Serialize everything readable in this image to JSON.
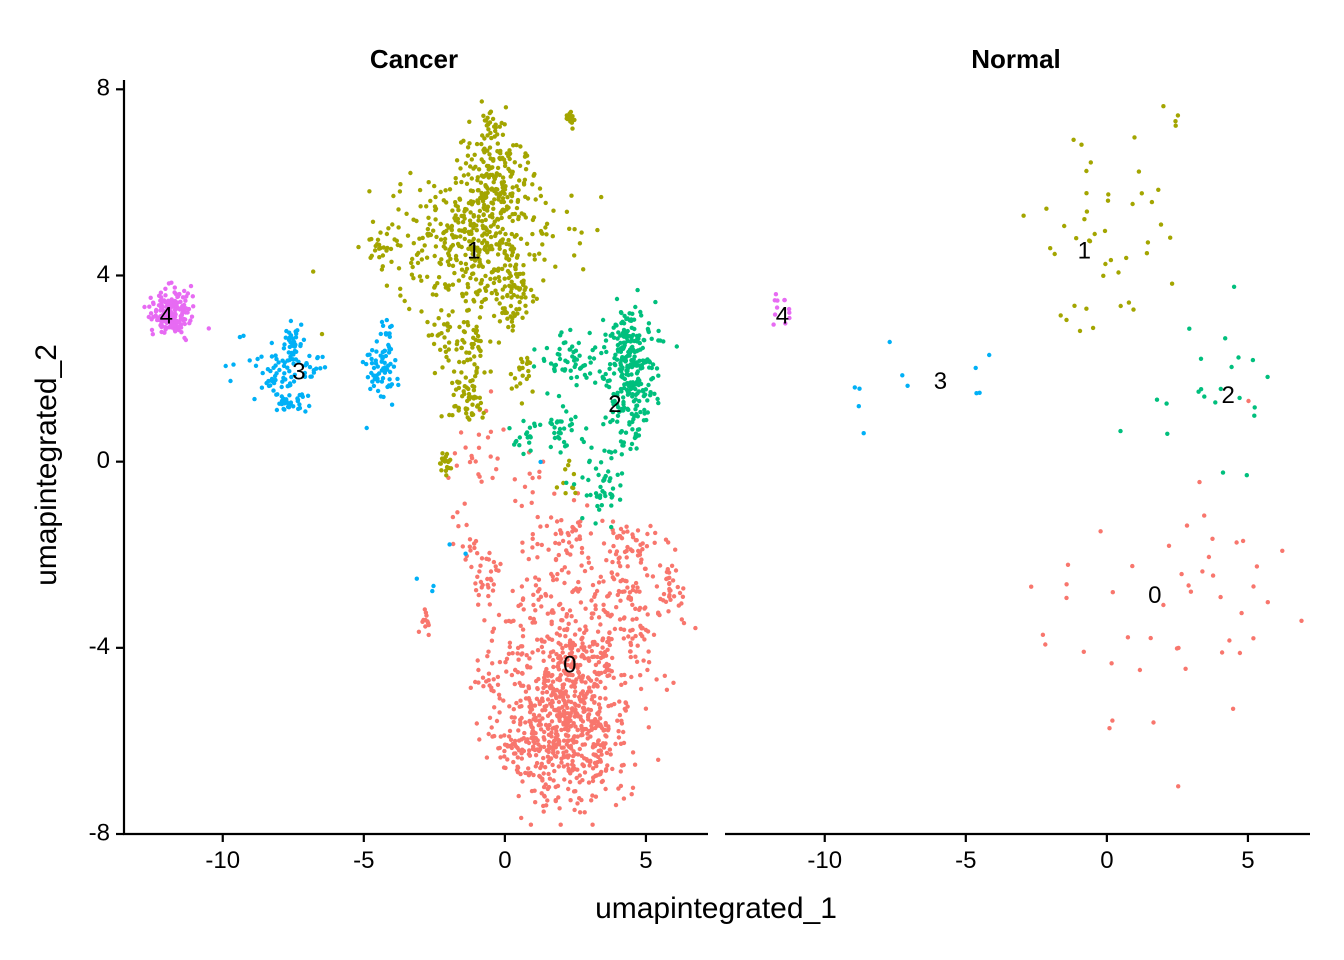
{
  "chart_data": {
    "type": "scatter",
    "xlabel": "umapintegrated_1",
    "ylabel": "umapintegrated_2",
    "xlim": [
      -13.5,
      7.2
    ],
    "ylim": [
      -8.0,
      8.2
    ],
    "xticks": [
      -10,
      -5,
      0,
      5
    ],
    "xtick_labels": [
      "-10",
      "-5",
      "0",
      "5"
    ],
    "yticks": [
      8,
      4,
      0,
      -4,
      -8
    ],
    "ytick_labels": [
      "8",
      "4",
      "0",
      "-4",
      "-8"
    ],
    "grid": false,
    "legend": "none",
    "clusters": [
      {
        "id": "0",
        "color": "#F8766D"
      },
      {
        "id": "1",
        "color": "#A3A500"
      },
      {
        "id": "2",
        "color": "#00BF7D"
      },
      {
        "id": "3",
        "color": "#00B0F6"
      },
      {
        "id": "4",
        "color": "#E76BF3"
      }
    ],
    "panels": [
      {
        "title": "Cancer",
        "blobs": [
          {
            "cluster": "0",
            "cx": 2.2,
            "cy": -5.6,
            "sx": 1.1,
            "sy": 0.9,
            "n": 650
          },
          {
            "cluster": "0",
            "cx": 2.5,
            "cy": -3.8,
            "sx": 1.5,
            "sy": 0.8,
            "n": 260
          },
          {
            "cluster": "0",
            "cx": 4.6,
            "cy": -3.0,
            "sx": 0.6,
            "sy": 0.7,
            "n": 80
          },
          {
            "cluster": "0",
            "cx": 5.9,
            "cy": -2.6,
            "sx": 0.2,
            "sy": 0.3,
            "n": 25
          },
          {
            "cluster": "0",
            "cx": 4.3,
            "cy": -1.8,
            "sx": 0.4,
            "sy": 0.3,
            "n": 30
          },
          {
            "cluster": "0",
            "cx": 2.4,
            "cy": -1.8,
            "sx": 0.8,
            "sy": 0.5,
            "n": 70
          },
          {
            "cluster": "0",
            "cx": -0.7,
            "cy": -2.5,
            "sx": 0.3,
            "sy": 0.4,
            "n": 30
          },
          {
            "cluster": "0",
            "cx": -1.4,
            "cy": -1.7,
            "sx": 0.2,
            "sy": 0.3,
            "n": 15
          },
          {
            "cluster": "0",
            "cx": -2.8,
            "cy": -3.4,
            "sx": 0.1,
            "sy": 0.15,
            "n": 12
          },
          {
            "cluster": "0",
            "cx": -1.0,
            "cy": 0.3,
            "sx": 0.5,
            "sy": 0.5,
            "n": 25
          },
          {
            "cluster": "0",
            "cx": -0.6,
            "cy": -4.7,
            "sx": 0.3,
            "sy": 0.1,
            "n": 12
          },
          {
            "cluster": "0",
            "cx": 0.4,
            "cy": -6.1,
            "sx": 0.4,
            "sy": 0.3,
            "n": 40
          },
          {
            "cluster": "0",
            "cx": 0.9,
            "cy": -0.5,
            "sx": 0.3,
            "sy": 0.3,
            "n": 12
          },
          {
            "cluster": "1",
            "cx": -1.0,
            "cy": 4.7,
            "sx": 1.4,
            "sy": 0.7,
            "n": 420
          },
          {
            "cluster": "1",
            "cx": -0.4,
            "cy": 6.2,
            "sx": 0.7,
            "sy": 0.6,
            "n": 150
          },
          {
            "cluster": "1",
            "cx": -0.4,
            "cy": 7.2,
            "sx": 0.15,
            "sy": 0.2,
            "n": 20
          },
          {
            "cluster": "1",
            "cx": 2.3,
            "cy": 7.3,
            "sx": 0.1,
            "sy": 0.1,
            "n": 15
          },
          {
            "cluster": "1",
            "cx": 0.3,
            "cy": 3.5,
            "sx": 0.4,
            "sy": 0.4,
            "n": 60
          },
          {
            "cluster": "1",
            "cx": -1.3,
            "cy": 2.4,
            "sx": 0.3,
            "sy": 0.4,
            "n": 50
          },
          {
            "cluster": "1",
            "cx": -2.2,
            "cy": 2.6,
            "sx": 0.2,
            "sy": 0.3,
            "n": 25
          },
          {
            "cluster": "1",
            "cx": -1.4,
            "cy": 1.3,
            "sx": 0.4,
            "sy": 0.25,
            "n": 50
          },
          {
            "cluster": "1",
            "cx": -2.1,
            "cy": 0.0,
            "sx": 0.15,
            "sy": 0.2,
            "n": 20
          },
          {
            "cluster": "1",
            "cx": 0.7,
            "cy": 1.9,
            "sx": 0.2,
            "sy": 0.2,
            "n": 20
          },
          {
            "cluster": "1",
            "cx": 2.3,
            "cy": -0.4,
            "sx": 0.15,
            "sy": 0.15,
            "n": 10
          },
          {
            "cluster": "1",
            "cx": -4.4,
            "cy": 4.6,
            "sx": 0.3,
            "sy": 0.2,
            "n": 25
          },
          {
            "cluster": "2",
            "cx": 4.5,
            "cy": 1.7,
            "sx": 0.4,
            "sy": 0.7,
            "n": 220
          },
          {
            "cluster": "2",
            "cx": 4.2,
            "cy": 2.6,
            "sx": 0.6,
            "sy": 0.3,
            "n": 70
          },
          {
            "cluster": "2",
            "cx": 2.3,
            "cy": 2.2,
            "sx": 0.6,
            "sy": 0.3,
            "n": 60
          },
          {
            "cluster": "2",
            "cx": 2.1,
            "cy": 0.8,
            "sx": 0.3,
            "sy": 0.25,
            "n": 30
          },
          {
            "cluster": "2",
            "cx": 3.5,
            "cy": -0.5,
            "sx": 0.4,
            "sy": 0.5,
            "n": 50
          },
          {
            "cluster": "2",
            "cx": 0.8,
            "cy": 0.6,
            "sx": 0.2,
            "sy": 0.2,
            "n": 20
          },
          {
            "cluster": "3",
            "cx": -8.0,
            "cy": 1.9,
            "sx": 0.4,
            "sy": 0.35,
            "n": 60
          },
          {
            "cluster": "3",
            "cx": -7.7,
            "cy": 1.3,
            "sx": 0.3,
            "sy": 0.15,
            "n": 30
          },
          {
            "cluster": "3",
            "cx": -7.5,
            "cy": 2.6,
            "sx": 0.15,
            "sy": 0.3,
            "n": 30
          },
          {
            "cluster": "3",
            "cx": -6.9,
            "cy": 2.1,
            "sx": 0.2,
            "sy": 0.15,
            "n": 18
          },
          {
            "cluster": "3",
            "cx": -4.4,
            "cy": 1.9,
            "sx": 0.3,
            "sy": 0.4,
            "n": 60
          },
          {
            "cluster": "3",
            "cx": -4.2,
            "cy": 2.7,
            "sx": 0.15,
            "sy": 0.2,
            "n": 15
          },
          {
            "cluster": "3",
            "cx": -9.8,
            "cy": 2.5,
            "sx": 0.4,
            "sy": 0.3,
            "n": 6
          },
          {
            "cluster": "3",
            "cx": -1.5,
            "cy": -2.0,
            "sx": 1.2,
            "sy": 1.0,
            "n": 6
          },
          {
            "cluster": "4",
            "cx": -11.8,
            "cy": 3.2,
            "sx": 0.35,
            "sy": 0.25,
            "n": 180
          }
        ],
        "labels": [
          {
            "text": "0",
            "x": 2.3,
            "y": -4.4
          },
          {
            "text": "1",
            "x": -1.1,
            "y": 4.5
          },
          {
            "text": "2",
            "x": 3.9,
            "y": 1.2
          },
          {
            "text": "3",
            "x": -7.3,
            "y": 1.9
          },
          {
            "text": "4",
            "x": -12.0,
            "y": 3.1
          }
        ]
      },
      {
        "title": "Normal",
        "blobs": [
          {
            "cluster": "0",
            "cx": 3.0,
            "cy": -3.5,
            "sx": 1.6,
            "sy": 1.6,
            "n": 40
          },
          {
            "cluster": "0",
            "cx": -1.3,
            "cy": -2.7,
            "sx": 0.8,
            "sy": 1.0,
            "n": 8
          },
          {
            "cluster": "1",
            "cx": -0.4,
            "cy": 4.8,
            "sx": 1.2,
            "sy": 1.3,
            "n": 45
          },
          {
            "cluster": "1",
            "cx": 2.4,
            "cy": 7.3,
            "sx": 0.08,
            "sy": 0.1,
            "n": 3
          },
          {
            "cluster": "2",
            "cx": 4.3,
            "cy": 1.6,
            "sx": 0.7,
            "sy": 0.9,
            "n": 18
          },
          {
            "cluster": "2",
            "cx": 1.3,
            "cy": 0.9,
            "sx": 0.8,
            "sy": 0.6,
            "n": 4
          },
          {
            "cluster": "3",
            "cx": -8.0,
            "cy": 1.7,
            "sx": 1.0,
            "sy": 0.6,
            "n": 7
          },
          {
            "cluster": "3",
            "cx": -4.4,
            "cy": 1.8,
            "sx": 0.2,
            "sy": 0.3,
            "n": 4
          },
          {
            "cluster": "4",
            "cx": -11.6,
            "cy": 3.3,
            "sx": 0.25,
            "sy": 0.2,
            "n": 12
          }
        ],
        "labels": [
          {
            "text": "0",
            "x": 1.7,
            "y": -2.9
          },
          {
            "text": "1",
            "x": -0.8,
            "y": 4.5
          },
          {
            "text": "2",
            "x": 4.3,
            "y": 1.4
          },
          {
            "text": "3",
            "x": -5.9,
            "y": 1.7
          },
          {
            "text": "4",
            "x": -11.5,
            "y": 3.1
          }
        ]
      }
    ]
  }
}
